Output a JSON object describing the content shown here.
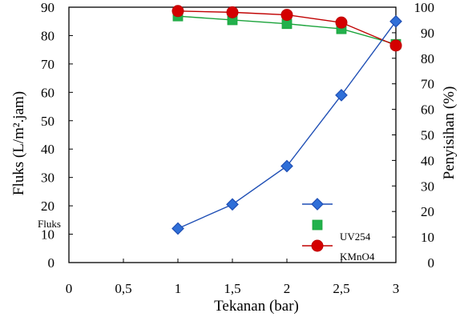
{
  "chart_data": {
    "type": "line",
    "title": "",
    "xlabel": "Tekanan (bar)",
    "ylabel_left": "Fluks (L/m².jam)",
    "ylabel_right": "Penyisihan (%)",
    "x_ticks": [
      "0",
      "0,5",
      "1",
      "1,5",
      "2",
      "2,5",
      "3"
    ],
    "xlim": [
      0,
      3
    ],
    "ylim_left": [
      0,
      90
    ],
    "ylim_right": [
      0,
      100
    ],
    "y_left_ticks": [
      "0",
      "10",
      "20",
      "30",
      "40",
      "50",
      "60",
      "70",
      "80",
      "90"
    ],
    "y_right_ticks": [
      "0",
      "10",
      "20",
      "30",
      "40",
      "50",
      "60",
      "70",
      "80",
      "90",
      "100"
    ],
    "stray_label": "Fluks",
    "legend_position": "bottom-right",
    "series": [
      {
        "key": "fluks",
        "name": "",
        "axis": "left",
        "marker": "diamond",
        "color": "#1f4fb5",
        "fill": "#2f6fd8",
        "x": [
          1,
          1.5,
          2,
          2.5,
          3
        ],
        "values": [
          12,
          20.5,
          34,
          59,
          85
        ]
      },
      {
        "key": "uv254",
        "name": "UV254",
        "axis": "right",
        "marker": "square",
        "color": "#1aa33a",
        "fill": "#22b14c",
        "x": [
          1,
          1.5,
          2,
          2.5,
          3
        ],
        "values": [
          96.5,
          95,
          93.5,
          91.5,
          85.5
        ]
      },
      {
        "key": "kmno4",
        "name": "KMnO4",
        "axis": "right",
        "marker": "circle",
        "color": "#c00000",
        "fill": "#d40000",
        "x": [
          1,
          1.5,
          2,
          2.5,
          3
        ],
        "values": [
          98.5,
          98,
          97,
          94,
          85
        ]
      }
    ]
  }
}
